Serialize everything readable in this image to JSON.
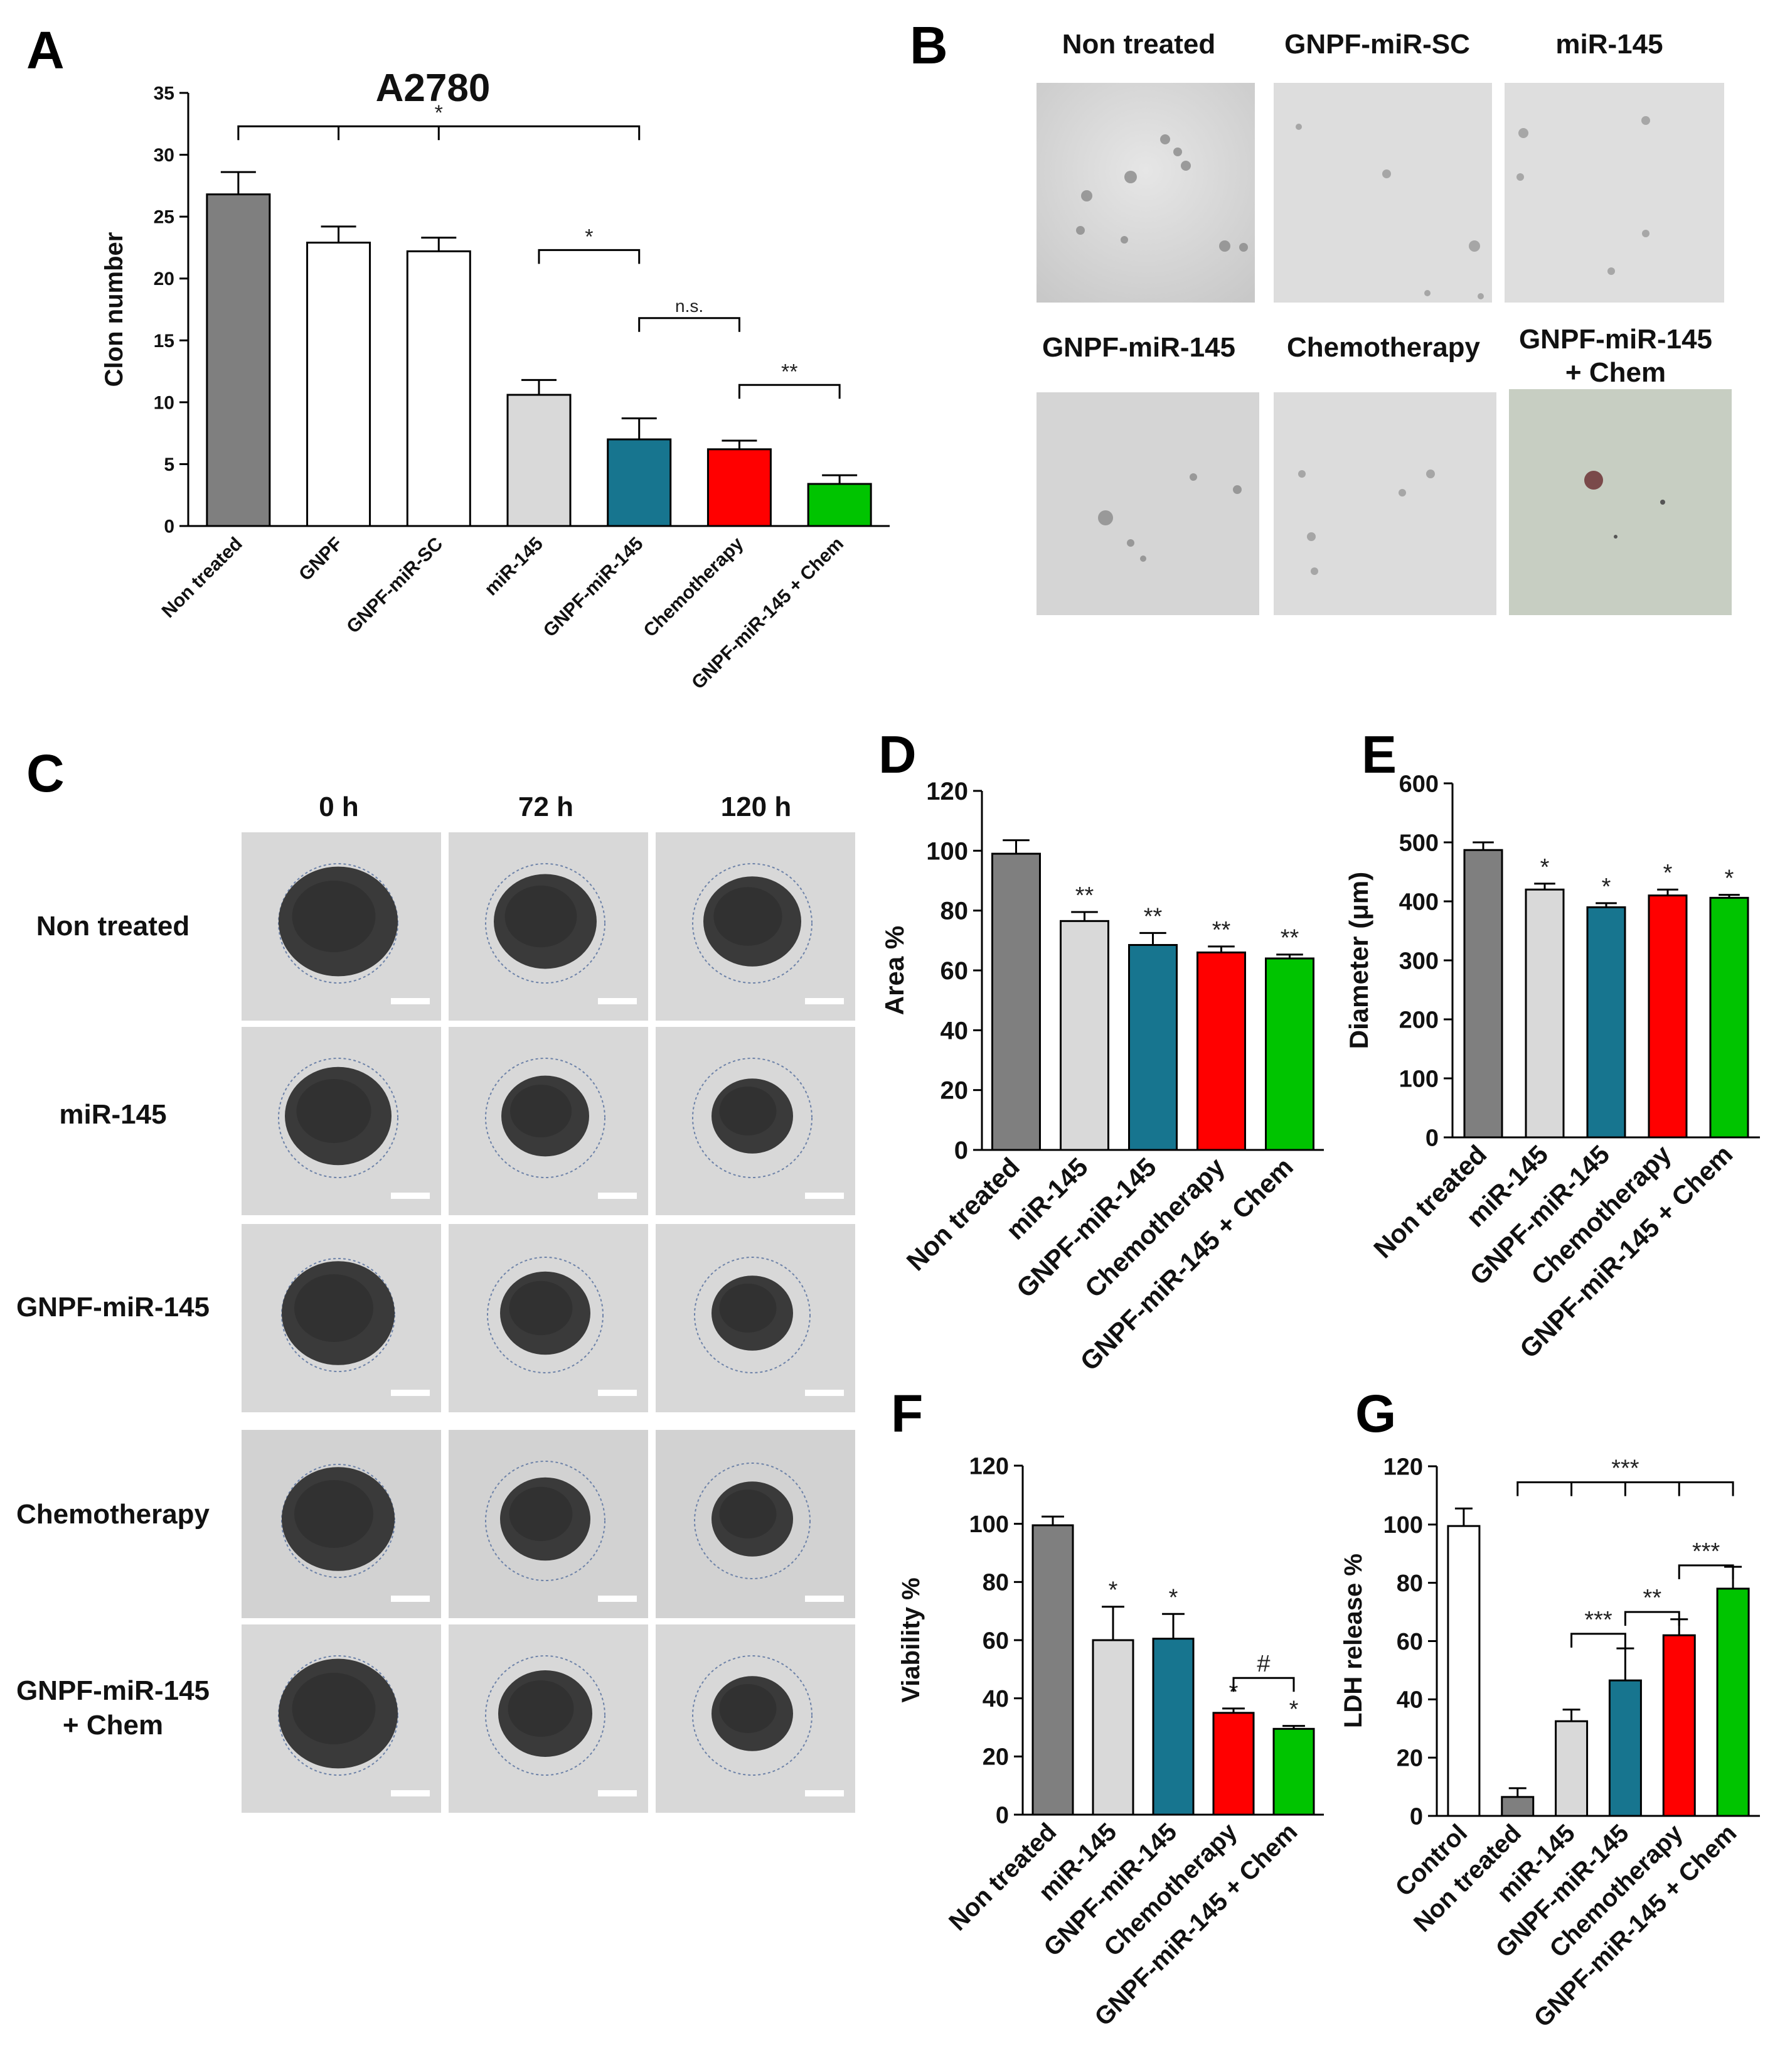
{
  "panel_labels": {
    "A": "A",
    "B": "B",
    "C": "C",
    "D": "D",
    "E": "E",
    "F": "F",
    "G": "G"
  },
  "colors": {
    "dark_gray": "#7f7f7f",
    "white": "#ffffff",
    "light_gray": "#d9d9d9",
    "teal": "#17758f",
    "red": "#ff0000",
    "green": "#00c400"
  },
  "panel_b": {
    "images": [
      {
        "label": "Non treated"
      },
      {
        "label": "GNPF-miR-SC"
      },
      {
        "label": "miR-145"
      },
      {
        "label": "GNPF-miR-145"
      },
      {
        "label": "Chemotherapy"
      },
      {
        "label": "GNPF-miR-145\n+ Chem"
      }
    ]
  },
  "panel_c": {
    "columns": [
      "0 h",
      "72 h",
      "120 h"
    ],
    "rows": [
      "Non treated",
      "miR-145",
      "GNPF-miR-145",
      "Chemotherapy",
      "GNPF-miR-145\n+ Chem"
    ]
  },
  "chart_data": [
    {
      "id": "A",
      "type": "bar",
      "title": "A2780",
      "ylabel": "Clon number",
      "xlabel": "",
      "ylim": [
        0,
        35
      ],
      "yticks": [
        0,
        5,
        10,
        15,
        20,
        25,
        30,
        35
      ],
      "categories": [
        "Non treated",
        "GNPF",
        "GNPF-miR-SC",
        "miR-145",
        "GNPF-miR-145",
        "Chemotherapy",
        "GNPF-miR-145 + Chem"
      ],
      "values": [
        26.8,
        22.9,
        22.2,
        10.6,
        7.0,
        6.2,
        3.4
      ],
      "errors": [
        1.8,
        1.3,
        1.1,
        1.2,
        1.7,
        0.7,
        0.7
      ],
      "colors": [
        "#7f7f7f",
        "#ffffff",
        "#ffffff",
        "#d9d9d9",
        "#17758f",
        "#ff0000",
        "#00c400"
      ],
      "brackets": [
        {
          "from": 0,
          "to": 4,
          "y": 32.3,
          "label": "*",
          "ticks": [
            1,
            2
          ]
        },
        {
          "from": 3,
          "to": 4,
          "y": 22.3,
          "label": "*"
        },
        {
          "from": 4,
          "to": 5,
          "y": 16.8,
          "label": "n.s."
        },
        {
          "from": 5,
          "to": 6,
          "y": 11.4,
          "label": "**"
        }
      ]
    },
    {
      "id": "D",
      "type": "bar",
      "title": "",
      "ylabel": "Area %",
      "xlabel": "",
      "ylim": [
        0,
        120
      ],
      "yticks": [
        0,
        20,
        40,
        60,
        80,
        100,
        120
      ],
      "categories": [
        "Non treated",
        "miR-145",
        "GNPF-miR-145",
        "Chemotherapy",
        "GNPF-miR-145 + Chem"
      ],
      "values": [
        99,
        76.5,
        68.5,
        66,
        64
      ],
      "errors": [
        4.5,
        3,
        4,
        2,
        1.3
      ],
      "colors": [
        "#7f7f7f",
        "#d9d9d9",
        "#17758f",
        "#ff0000",
        "#00c400"
      ],
      "marks": [
        "",
        "**",
        "**",
        "**",
        "**"
      ]
    },
    {
      "id": "E",
      "type": "bar",
      "title": "",
      "ylabel": "Diameter (μm)",
      "xlabel": "",
      "ylim": [
        0,
        600
      ],
      "yticks": [
        0,
        100,
        200,
        300,
        400,
        500,
        600
      ],
      "categories": [
        "Non treated",
        "miR-145",
        "GNPF-miR-145",
        "Chemotherapy",
        "GNPF-miR-145 + Chem"
      ],
      "values": [
        487,
        420,
        390,
        410,
        406
      ],
      "errors": [
        13,
        10,
        7,
        10,
        5
      ],
      "colors": [
        "#7f7f7f",
        "#d9d9d9",
        "#17758f",
        "#ff0000",
        "#00c400"
      ],
      "marks": [
        "",
        "*",
        "*",
        "*",
        "*"
      ]
    },
    {
      "id": "F",
      "type": "bar",
      "title": "",
      "ylabel": "Viability %",
      "xlabel": "",
      "ylim": [
        0,
        120
      ],
      "yticks": [
        0,
        20,
        40,
        60,
        80,
        100,
        120
      ],
      "categories": [
        "Non treated",
        "miR-145",
        "GNPF-miR-145",
        "Chemotherapy",
        "GNPF-miR-145 + Chem"
      ],
      "values": [
        99.5,
        60,
        60.5,
        35,
        29.5
      ],
      "errors": [
        3,
        11.5,
        8.5,
        1.5,
        1
      ],
      "colors": [
        "#7f7f7f",
        "#d9d9d9",
        "#17758f",
        "#ff0000",
        "#00c400"
      ],
      "marks": [
        "",
        "*",
        "*",
        "*",
        "*"
      ],
      "brackets": [
        {
          "from": 3,
          "to": 4,
          "y": 47,
          "label": "#"
        }
      ]
    },
    {
      "id": "G",
      "type": "bar",
      "title": "",
      "ylabel": "LDH release %",
      "xlabel": "",
      "ylim": [
        0,
        120
      ],
      "yticks": [
        0,
        20,
        40,
        60,
        80,
        100,
        120
      ],
      "categories": [
        "Control",
        "Non treated",
        "miR-145",
        "GNPF-miR-145",
        "Chemotherapy",
        "GNPF-miR-145 + Chem"
      ],
      "values": [
        99.5,
        6.5,
        32.5,
        46.5,
        62,
        78
      ],
      "errors": [
        6,
        3,
        4,
        11,
        5.5,
        7.5
      ],
      "colors": [
        "#ffffff",
        "#7f7f7f",
        "#d9d9d9",
        "#17758f",
        "#ff0000",
        "#00c400"
      ],
      "brackets": [
        {
          "from": 1,
          "to": 5,
          "y": 114.5,
          "label": "***",
          "ticks": [
            2,
            3,
            4
          ]
        },
        {
          "from": 2,
          "to": 3,
          "y": 62.5,
          "label": "***"
        },
        {
          "from": 3,
          "to": 4,
          "y": 70,
          "label": "**"
        },
        {
          "from": 4,
          "to": 5,
          "y": 86,
          "label": "***"
        }
      ]
    }
  ]
}
